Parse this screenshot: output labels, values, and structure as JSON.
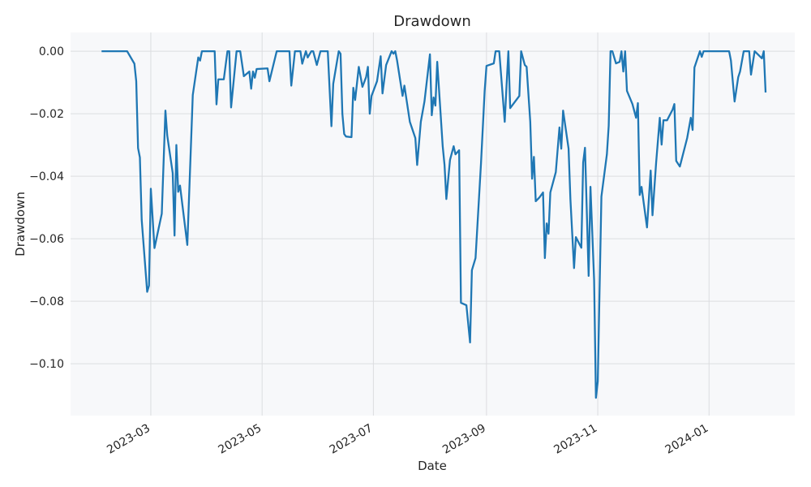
{
  "chart_data": {
    "type": "line",
    "title": "Drawdown",
    "x_label": "Date",
    "y_label": "Drawdown",
    "x": [
      "2023-02-02",
      "2023-02-16",
      "2023-02-20",
      "2023-02-21",
      "2023-02-22",
      "2023-02-23",
      "2023-02-24",
      "2023-02-27",
      "2023-02-28",
      "2023-03-01",
      "2023-03-03",
      "2023-03-07",
      "2023-03-09",
      "2023-03-10",
      "2023-03-13",
      "2023-03-14",
      "2023-03-15",
      "2023-03-16",
      "2023-03-17",
      "2023-03-21",
      "2023-03-24",
      "2023-03-27",
      "2023-03-28",
      "2023-03-29",
      "2023-04-05",
      "2023-04-06",
      "2023-04-07",
      "2023-04-10",
      "2023-04-12",
      "2023-04-13",
      "2023-04-14",
      "2023-04-17",
      "2023-04-19",
      "2023-04-21",
      "2023-04-24",
      "2023-04-25",
      "2023-04-26",
      "2023-04-27",
      "2023-04-28",
      "2023-05-04",
      "2023-05-05",
      "2023-05-09",
      "2023-05-16",
      "2023-05-17",
      "2023-05-19",
      "2023-05-22",
      "2023-05-23",
      "2023-05-25",
      "2023-05-26",
      "2023-05-28",
      "2023-05-29",
      "2023-05-31",
      "2023-06-02",
      "2023-06-06",
      "2023-06-08",
      "2023-06-09",
      "2023-06-12",
      "2023-06-13",
      "2023-06-14",
      "2023-06-15",
      "2023-06-16",
      "2023-06-19",
      "2023-06-20",
      "2023-06-21",
      "2023-06-23",
      "2023-06-25",
      "2023-06-27",
      "2023-06-28",
      "2023-06-29",
      "2023-06-30",
      "2023-07-03",
      "2023-07-05",
      "2023-07-06",
      "2023-07-08",
      "2023-07-11",
      "2023-07-12",
      "2023-07-13",
      "2023-07-14",
      "2023-07-17",
      "2023-07-18",
      "2023-07-21",
      "2023-07-24",
      "2023-07-25",
      "2023-07-27",
      "2023-07-29",
      "2023-08-01",
      "2023-08-02",
      "2023-08-03",
      "2023-08-04",
      "2023-08-05",
      "2023-08-08",
      "2023-08-09",
      "2023-08-10",
      "2023-08-12",
      "2023-08-14",
      "2023-08-15",
      "2023-08-17",
      "2023-08-18",
      "2023-08-21",
      "2023-08-23",
      "2023-08-24",
      "2023-08-26",
      "2023-08-29",
      "2023-08-31",
      "2023-09-01",
      "2023-09-05",
      "2023-09-06",
      "2023-09-08",
      "2023-09-11",
      "2023-09-12",
      "2023-09-13",
      "2023-09-14",
      "2023-09-19",
      "2023-09-20",
      "2023-09-22",
      "2023-09-23",
      "2023-09-25",
      "2023-09-26",
      "2023-09-27",
      "2023-09-28",
      "2023-09-30",
      "2023-10-02",
      "2023-10-03",
      "2023-10-04",
      "2023-10-05",
      "2023-10-06",
      "2023-10-09",
      "2023-10-11",
      "2023-10-12",
      "2023-10-13",
      "2023-10-16",
      "2023-10-17",
      "2023-10-19",
      "2023-10-20",
      "2023-10-23",
      "2023-10-24",
      "2023-10-25",
      "2023-10-27",
      "2023-10-28",
      "2023-10-30",
      "2023-10-31",
      "2023-11-01",
      "2023-11-03",
      "2023-11-06",
      "2023-11-07",
      "2023-11-08",
      "2023-11-09",
      "2023-11-11",
      "2023-11-13",
      "2023-11-14",
      "2023-11-15",
      "2023-11-16",
      "2023-11-17",
      "2023-11-20",
      "2023-11-22",
      "2023-11-23",
      "2023-11-24",
      "2023-11-25",
      "2023-11-28",
      "2023-11-30",
      "2023-12-01",
      "2023-12-03",
      "2023-12-05",
      "2023-12-06",
      "2023-12-07",
      "2023-12-09",
      "2023-12-12",
      "2023-12-13",
      "2023-12-14",
      "2023-12-16",
      "2023-12-20",
      "2023-12-22",
      "2023-12-23",
      "2023-12-24",
      "2023-12-27",
      "2023-12-28",
      "2023-12-29",
      "2024-01-12",
      "2024-01-13",
      "2024-01-15",
      "2024-01-17",
      "2024-01-18",
      "2024-01-20",
      "2024-01-23",
      "2024-01-24",
      "2024-01-26",
      "2024-01-30",
      "2024-01-31",
      "2024-02-01"
    ],
    "series": [
      {
        "name": "Drawdown",
        "color": "#1f77b4",
        "values": [
          0,
          0,
          -0.004,
          -0.0096,
          -0.031,
          -0.034,
          -0.054,
          -0.077,
          -0.075,
          -0.044,
          -0.063,
          -0.052,
          -0.019,
          -0.027,
          -0.039,
          -0.059,
          -0.03,
          -0.045,
          -0.043,
          -0.062,
          -0.014,
          -0.002,
          -0.003,
          0,
          0,
          -0.017,
          -0.009,
          -0.009,
          0,
          0,
          -0.018,
          0,
          0,
          -0.008,
          -0.0065,
          -0.012,
          -0.0065,
          -0.0085,
          -0.0057,
          -0.0055,
          -0.0096,
          0,
          0,
          -0.011,
          0,
          0,
          -0.004,
          0,
          -0.002,
          0,
          0,
          -0.0044,
          0,
          0,
          -0.024,
          -0.0104,
          0,
          -0.0008,
          -0.02,
          -0.0265,
          -0.0273,
          -0.0275,
          -0.0117,
          -0.0156,
          -0.005,
          -0.0114,
          -0.0083,
          -0.005,
          -0.02,
          -0.0143,
          -0.0096,
          -0.0016,
          -0.0135,
          -0.0044,
          0,
          -0.0008,
          0,
          -0.003,
          -0.0143,
          -0.011,
          -0.0226,
          -0.0278,
          -0.0364,
          -0.0226,
          -0.0161,
          -0.001,
          -0.0205,
          -0.0148,
          -0.0174,
          -0.0034,
          -0.0304,
          -0.0364,
          -0.0473,
          -0.0348,
          -0.0304,
          -0.033,
          -0.0317,
          -0.0805,
          -0.0813,
          -0.0932,
          -0.0701,
          -0.0662,
          -0.0358,
          -0.0127,
          -0.0047,
          -0.0039,
          0,
          0,
          -0.0226,
          -0.011,
          0,
          -0.0182,
          -0.0143,
          0,
          -0.0044,
          -0.005,
          -0.0226,
          -0.0408,
          -0.0338,
          -0.048,
          -0.0468,
          -0.0452,
          -0.0662,
          -0.0551,
          -0.0584,
          -0.0452,
          -0.0387,
          -0.0244,
          -0.0312,
          -0.019,
          -0.0312,
          -0.0473,
          -0.0694,
          -0.0595,
          -0.0629,
          -0.0356,
          -0.0309,
          -0.0719,
          -0.0434,
          -0.0732,
          -0.1109,
          -0.1057,
          -0.0465,
          -0.033,
          -0.0239,
          0,
          0,
          -0.0039,
          -0.0034,
          0,
          -0.0065,
          0,
          -0.0127,
          -0.0169,
          -0.0213,
          -0.0166,
          -0.046,
          -0.0434,
          -0.0564,
          -0.0382,
          -0.0525,
          -0.0356,
          -0.0213,
          -0.0299,
          -0.0221,
          -0.0221,
          -0.0187,
          -0.0169,
          -0.0351,
          -0.0369,
          -0.0278,
          -0.0213,
          -0.0252,
          -0.0052,
          0,
          -0.0018,
          0,
          0,
          -0.003,
          -0.0161,
          -0.0083,
          -0.0065,
          0,
          0,
          -0.0075,
          0,
          -0.0023,
          0,
          -0.0132
        ]
      }
    ],
    "xlim": [
      "2023-01-16",
      "2024-02-17"
    ],
    "xticks": [
      {
        "value": "2023-03-01",
        "label": "2023-03"
      },
      {
        "value": "2023-05-01",
        "label": "2023-05"
      },
      {
        "value": "2023-07-01",
        "label": "2023-07"
      },
      {
        "value": "2023-09-01",
        "label": "2023-09"
      },
      {
        "value": "2023-11-01",
        "label": "2023-11"
      },
      {
        "value": "2024-01-01",
        "label": "2024-01"
      }
    ],
    "ylim": [
      -0.1166,
      0.006
    ],
    "yticks": [
      {
        "value": 0,
        "label": "0.00"
      },
      {
        "value": -0.02,
        "label": "−0.02"
      },
      {
        "value": -0.04,
        "label": "−0.04"
      },
      {
        "value": -0.06,
        "label": "−0.06"
      },
      {
        "value": -0.08,
        "label": "−0.08"
      },
      {
        "value": -0.1,
        "label": "−0.10"
      }
    ],
    "grid": true
  }
}
